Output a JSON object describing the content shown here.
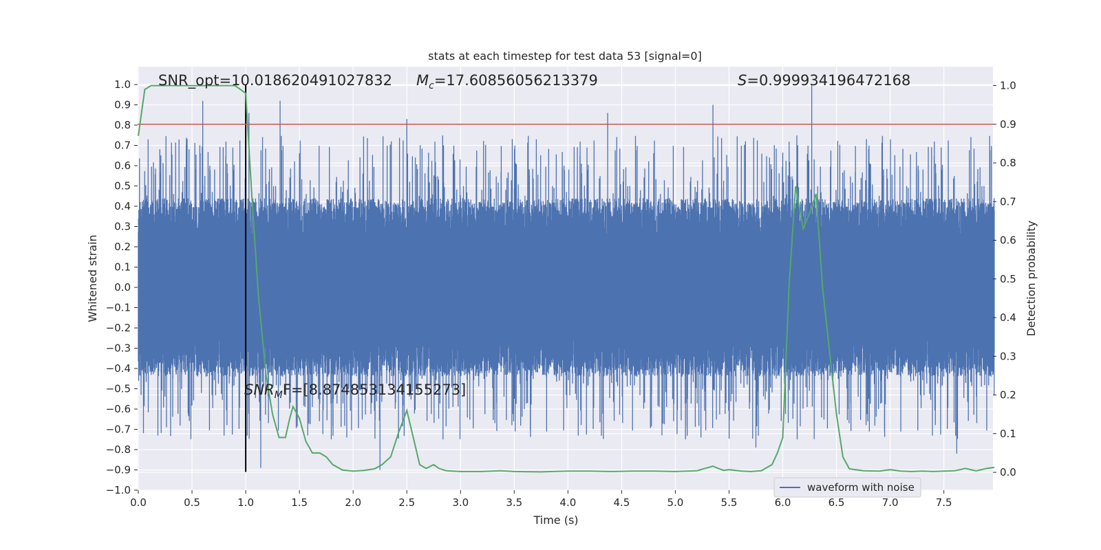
{
  "chart_data": {
    "type": "line",
    "title": "stats at each timestep for test data 53 [signal=0]",
    "xlabel": "Time (s)",
    "ylabel_left": "Whitened strain",
    "ylabel_right": "Detection probability",
    "xlim": [
      0.0,
      7.97
    ],
    "ylim_left": [
      -1.0,
      1.0
    ],
    "ylim_right": [
      -0.048,
      1.04
    ],
    "grid": true,
    "legend": {
      "placement": "lower-right",
      "entries": [
        "waveform with noise"
      ]
    },
    "x_ticks": [
      "0.0",
      "0.5",
      "1.0",
      "1.5",
      "2.0",
      "2.5",
      "3.0",
      "3.5",
      "4.0",
      "4.5",
      "5.0",
      "5.5",
      "6.0",
      "6.5",
      "7.0",
      "7.5"
    ],
    "x_tick_values": [
      0.0,
      0.5,
      1.0,
      1.5,
      2.0,
      2.5,
      3.0,
      3.5,
      4.0,
      4.5,
      5.0,
      5.5,
      6.0,
      6.5,
      7.0,
      7.5
    ],
    "y_left_ticks": [
      "1.0",
      "0.9",
      "0.8",
      "0.7",
      "0.6",
      "0.5",
      "0.4",
      "0.3",
      "0.2",
      "0.1",
      "0.0",
      "−0.1",
      "−0.2",
      "−0.3",
      "−0.4",
      "−0.5",
      "−0.6",
      "−0.7",
      "−0.8",
      "−0.9",
      "−1.0"
    ],
    "y_left_tick_values": [
      1.0,
      0.9,
      0.8,
      0.7,
      0.6,
      0.5,
      0.4,
      0.3,
      0.2,
      0.1,
      0.0,
      -0.1,
      -0.2,
      -0.3,
      -0.4,
      -0.5,
      -0.6,
      -0.7,
      -0.8,
      -0.9,
      -1.0
    ],
    "y_right_ticks": [
      "1.0",
      "0.9",
      "0.8",
      "0.7",
      "0.6",
      "0.5",
      "0.4",
      "0.3",
      "0.2",
      "0.1",
      "0.0"
    ],
    "y_right_tick_values": [
      1.0,
      0.9,
      0.8,
      0.7,
      0.6,
      0.5,
      0.4,
      0.3,
      0.2,
      0.1,
      0.0
    ],
    "annotations": {
      "snr_opt": "SNR_opt=10.018620491027832",
      "mc_symbol": "M",
      "mc_sub": "c",
      "mc_value": "=17.60856056213379",
      "s_symbol": "S",
      "s_value": "=0.999934196472168",
      "snr_mf_symbol": "SNR",
      "snr_mf_sub": "M",
      "snr_mf_value": "F=[8.874853134155273]"
    },
    "threshold_line": {
      "y_right": 0.9,
      "color": "#c44e52"
    },
    "marker_line": {
      "x": 1.0,
      "y_left_range": [
        -0.91,
        1.0
      ],
      "color": "#000000"
    },
    "series": [
      {
        "name": "waveform with noise",
        "axis": "left",
        "color": "#4c72b0",
        "description_rule": "dense noise, band approx ±0.3 to ±0.6, sampled every 0.002 s",
        "spikes": [
          {
            "x": 1.0,
            "y": 0.78
          },
          {
            "x": 1.03,
            "y": 0.86
          },
          {
            "x": 1.32,
            "y": 0.92
          },
          {
            "x": 2.5,
            "y": 0.83
          },
          {
            "x": 4.37,
            "y": 0.86
          },
          {
            "x": 5.35,
            "y": 0.9
          },
          {
            "x": 6.27,
            "y": 1.0
          },
          {
            "x": 1.14,
            "y": -0.89
          },
          {
            "x": 2.25,
            "y": -0.9
          },
          {
            "x": 7.62,
            "y": -0.82
          },
          {
            "x": 5.75,
            "y": -0.79
          },
          {
            "x": 0.6,
            "y": 0.92
          }
        ]
      },
      {
        "name": "",
        "axis": "right",
        "color": "#55a868",
        "x": [
          0.0,
          0.06,
          0.12,
          0.2,
          0.3,
          0.4,
          0.5,
          0.6,
          0.7,
          0.8,
          0.85,
          0.9,
          0.95,
          1.0,
          1.06,
          1.12,
          1.19,
          1.25,
          1.31,
          1.37,
          1.41,
          1.44,
          1.5,
          1.56,
          1.62,
          1.69,
          1.75,
          1.81,
          1.9,
          2.0,
          2.1,
          2.2,
          2.27,
          2.35,
          2.42,
          2.5,
          2.56,
          2.62,
          2.68,
          2.75,
          2.8,
          2.87,
          3.0,
          3.2,
          3.37,
          3.5,
          3.75,
          4.0,
          4.2,
          4.4,
          4.6,
          4.8,
          5.0,
          5.2,
          5.3,
          5.35,
          5.4,
          5.45,
          5.5,
          5.56,
          5.62,
          5.7,
          5.8,
          5.9,
          5.95,
          6.0,
          6.06,
          6.12,
          6.19,
          6.25,
          6.31,
          6.37,
          6.44,
          6.5,
          6.56,
          6.62,
          6.75,
          6.9,
          7.0,
          7.1,
          7.2,
          7.3,
          7.4,
          7.5,
          7.6,
          7.7,
          7.8,
          7.9,
          7.97
        ],
        "values": [
          0.87,
          0.99,
          1.0,
          1.0,
          1.0,
          1.0,
          1.0,
          1.0,
          1.0,
          1.0,
          1.0,
          1.0,
          0.99,
          0.98,
          0.7,
          0.45,
          0.25,
          0.15,
          0.09,
          0.09,
          0.14,
          0.17,
          0.14,
          0.08,
          0.05,
          0.05,
          0.04,
          0.02,
          0.006,
          0.003,
          0.005,
          0.009,
          0.02,
          0.04,
          0.1,
          0.16,
          0.09,
          0.02,
          0.01,
          0.02,
          0.01,
          0.004,
          0.002,
          0.002,
          0.004,
          0.002,
          0.001,
          0.003,
          0.003,
          0.002,
          0.003,
          0.003,
          0.002,
          0.004,
          0.012,
          0.016,
          0.01,
          0.005,
          0.007,
          0.005,
          0.003,
          0.002,
          0.004,
          0.02,
          0.05,
          0.09,
          0.49,
          0.74,
          0.63,
          0.67,
          0.72,
          0.48,
          0.3,
          0.15,
          0.04,
          0.009,
          0.004,
          0.003,
          0.007,
          0.003,
          0.002,
          0.003,
          0.002,
          0.003,
          0.004,
          0.01,
          0.004,
          0.01,
          0.013
        ]
      }
    ]
  }
}
